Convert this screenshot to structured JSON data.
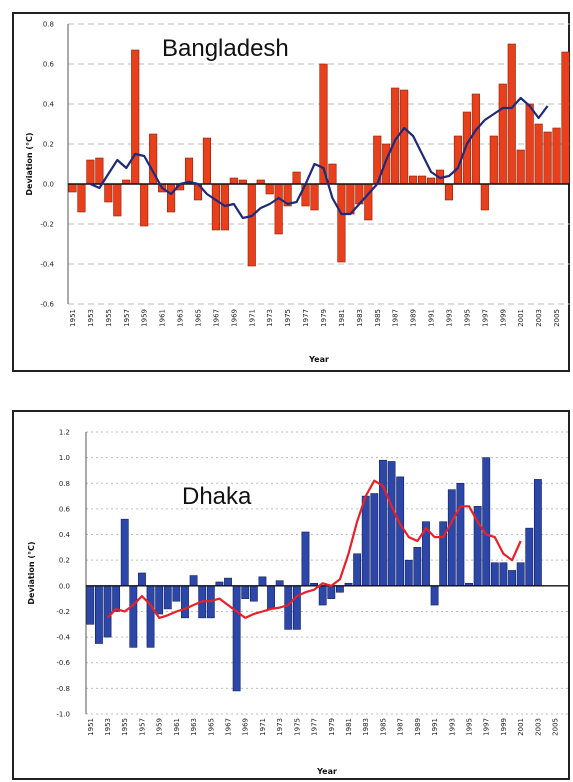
{
  "chart_data": [
    {
      "type": "bar",
      "title": "Bangladesh",
      "xlabel": "Year",
      "ylabel": "Deviation (°C)",
      "ylim": [
        -0.6,
        0.8
      ],
      "yticks": [
        "0.8",
        "0.6",
        "0.4",
        "0.2",
        "0.0",
        "-0.2",
        "-0.4",
        "-0.6"
      ],
      "ytick_values": [
        0.8,
        0.6,
        0.4,
        0.2,
        0.0,
        -0.2,
        -0.4,
        -0.6
      ],
      "grid": "horizontal dashed",
      "x": [
        1951,
        1952,
        1953,
        1954,
        1955,
        1956,
        1957,
        1958,
        1959,
        1960,
        1961,
        1962,
        1963,
        1964,
        1965,
        1966,
        1967,
        1968,
        1969,
        1970,
        1971,
        1972,
        1973,
        1974,
        1975,
        1976,
        1977,
        1978,
        1979,
        1980,
        1981,
        1982,
        1983,
        1984,
        1985,
        1986,
        1987,
        1988,
        1989,
        1990,
        1991,
        1992,
        1993,
        1994,
        1995,
        1996,
        1997,
        1998,
        1999,
        2000,
        2001,
        2002,
        2003,
        2004,
        2005,
        2006
      ],
      "xtick_labels": [
        "1951",
        "1953",
        "1955",
        "1957",
        "1959",
        "1961",
        "1963",
        "1965",
        "1967",
        "1969",
        "1971",
        "1973",
        "1975",
        "1977",
        "1979",
        "1981",
        "1983",
        "1985",
        "1987",
        "1989",
        "1991",
        "1993",
        "1995",
        "1997",
        "1999",
        "2001",
        "2003",
        "2005"
      ],
      "series": [
        {
          "kind": "bar",
          "color": "#e8401c",
          "stroke": "#8a1e06",
          "values": [
            -0.04,
            -0.14,
            0.12,
            0.13,
            -0.09,
            -0.16,
            0.02,
            0.67,
            -0.21,
            0.25,
            -0.04,
            -0.14,
            -0.03,
            0.13,
            -0.08,
            0.23,
            -0.23,
            -0.23,
            0.03,
            0.02,
            -0.41,
            0.02,
            -0.05,
            -0.25,
            -0.11,
            0.06,
            -0.11,
            -0.13,
            0.6,
            0.1,
            -0.39,
            -0.15,
            -0.1,
            -0.18,
            0.24,
            0.2,
            0.48,
            0.47,
            0.04,
            0.04,
            0.03,
            0.07,
            -0.08,
            0.24,
            0.36,
            0.45,
            -0.13,
            0.24,
            0.5,
            0.7,
            0.17,
            0.4,
            0.3,
            0.26,
            0.28,
            0.66
          ]
        },
        {
          "kind": "line",
          "color": "#1e2a7a",
          "values": [
            null,
            null,
            0.0,
            -0.02,
            0.05,
            0.12,
            0.08,
            0.15,
            0.14,
            0.06,
            -0.02,
            -0.05,
            0.0,
            0.01,
            0.0,
            -0.05,
            -0.08,
            -0.11,
            -0.1,
            -0.17,
            -0.16,
            -0.12,
            -0.1,
            -0.07,
            -0.1,
            -0.09,
            0.0,
            0.1,
            0.08,
            -0.07,
            -0.15,
            -0.15,
            -0.1,
            -0.05,
            0.0,
            0.12,
            0.22,
            0.28,
            0.24,
            0.15,
            0.06,
            0.03,
            0.04,
            0.08,
            0.2,
            0.27,
            0.32,
            0.35,
            0.38,
            0.38,
            0.43,
            0.39,
            0.33,
            0.39,
            null,
            null
          ]
        }
      ]
    },
    {
      "type": "bar",
      "title": "Dhaka",
      "xlabel": "Year",
      "ylabel": "Deviation (°C)",
      "ylim": [
        -1.0,
        1.2
      ],
      "yticks": [
        "1.2",
        "1.0",
        "0.8",
        "0.6",
        "0.4",
        "0.2",
        "0.0",
        "-0.2",
        "-0.4",
        "-0.6",
        "-0.8",
        "-1.0"
      ],
      "ytick_values": [
        1.2,
        1.0,
        0.8,
        0.6,
        0.4,
        0.2,
        0.0,
        -0.2,
        -0.4,
        -0.6,
        -0.8,
        -1.0
      ],
      "grid": "horizontal dotted",
      "x": [
        1951,
        1952,
        1953,
        1954,
        1955,
        1956,
        1957,
        1958,
        1959,
        1960,
        1961,
        1962,
        1963,
        1964,
        1965,
        1966,
        1967,
        1968,
        1969,
        1970,
        1971,
        1972,
        1973,
        1974,
        1975,
        1976,
        1977,
        1978,
        1979,
        1980,
        1981,
        1982,
        1983,
        1984,
        1985,
        1986,
        1987,
        1988,
        1989,
        1990,
        1991,
        1992,
        1993,
        1994,
        1995,
        1996,
        1997,
        1998,
        1999,
        2000,
        2001,
        2002,
        2003,
        2004,
        2005,
        2006
      ],
      "xtick_labels": [
        "1951",
        "1953",
        "1955",
        "1957",
        "1959",
        "1961",
        "1963",
        "1965",
        "1967",
        "1969",
        "1971",
        "1973",
        "1975",
        "1977",
        "1979",
        "1981",
        "1983",
        "1985",
        "1987",
        "1989",
        "1991",
        "1993",
        "1995",
        "1997",
        "1999",
        "2001",
        "2003",
        "2005"
      ],
      "series": [
        {
          "kind": "bar",
          "color": "#2d47a8",
          "stroke": "#0f1f5e",
          "values": [
            -0.3,
            -0.45,
            -0.4,
            -0.2,
            0.52,
            -0.48,
            0.1,
            -0.48,
            -0.22,
            -0.18,
            -0.12,
            -0.25,
            0.08,
            -0.25,
            -0.25,
            0.03,
            0.06,
            -0.82,
            -0.1,
            -0.12,
            0.07,
            -0.18,
            0.04,
            -0.34,
            -0.34,
            0.42,
            0.02,
            -0.15,
            -0.1,
            -0.05,
            0.02,
            0.25,
            0.7,
            0.72,
            0.98,
            0.97,
            0.85,
            0.2,
            0.3,
            0.5,
            -0.15,
            0.5,
            0.75,
            0.8,
            0.02,
            0.62,
            1.0,
            0.18,
            0.18,
            0.12,
            0.18,
            0.45,
            0.83,
            null,
            null,
            null
          ]
        },
        {
          "kind": "line",
          "color": "#e8202a",
          "values": [
            null,
            null,
            -0.25,
            -0.18,
            -0.2,
            -0.15,
            -0.08,
            -0.15,
            -0.25,
            -0.23,
            -0.2,
            -0.18,
            -0.15,
            -0.12,
            -0.12,
            -0.1,
            -0.15,
            -0.2,
            -0.25,
            -0.22,
            -0.2,
            -0.18,
            -0.17,
            -0.15,
            -0.08,
            -0.05,
            -0.03,
            0.02,
            0.0,
            0.05,
            0.25,
            0.5,
            0.7,
            0.82,
            0.78,
            0.62,
            0.48,
            0.38,
            0.35,
            0.45,
            0.38,
            0.38,
            0.5,
            0.62,
            0.62,
            0.5,
            0.4,
            0.38,
            0.25,
            0.2,
            0.35,
            null,
            null,
            null,
            null,
            null
          ]
        }
      ]
    }
  ]
}
